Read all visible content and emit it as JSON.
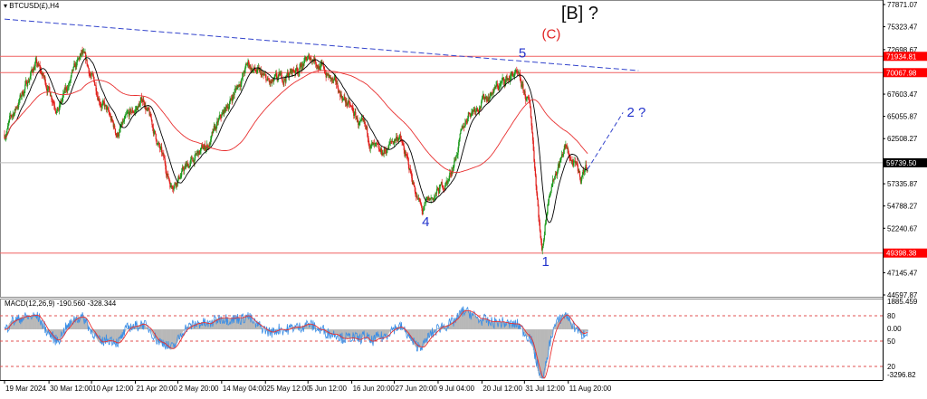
{
  "window": {
    "symbol_title": "BTCUSD(£),H4"
  },
  "colors": {
    "bull": "#1f9a1f",
    "bear": "#e0201c",
    "level_line": "#f06060",
    "trend_line": "#3344cc",
    "wave_label": "#2233cc",
    "c_label": "#e02020",
    "ma_short": "#000000",
    "ma_long": "#e83030",
    "current_price_bg": "#000000",
    "level_bg": "#ff0000"
  },
  "chart_data": {
    "type": "candlestick",
    "timeframe": "H4",
    "price_axis": {
      "min": 44597.87,
      "max": 77871.07,
      "ticks": [
        "77871.07",
        "75323.47",
        "72698.67",
        "67603.47",
        "65055.87",
        "62508.27",
        "57335.87",
        "54788.27",
        "52240.67",
        "47145.47",
        "44597.87"
      ]
    },
    "time_ticks": [
      {
        "label": "19 Mar 2024",
        "date": "2024-03-19T00:00"
      },
      {
        "label": "30 Mar 12:00",
        "date": "2024-03-30T12:00"
      },
      {
        "label": "10 Apr 12:00",
        "date": "2024-04-10T12:00"
      },
      {
        "label": "21 Apr 20:00",
        "date": "2024-04-21T20:00"
      },
      {
        "label": "2 May 20:00",
        "date": "2024-05-02T20:00"
      },
      {
        "label": "14 May 04:00",
        "date": "2024-05-14T04:00"
      },
      {
        "label": "25 May 12:00",
        "date": "2024-05-25T12:00"
      },
      {
        "label": "5 Jun 12:00",
        "date": "2024-06-05T12:00"
      },
      {
        "label": "16 Jun 20:00",
        "date": "2024-06-16T20:00"
      },
      {
        "label": "27 Jun 20:00",
        "date": "2024-06-27T20:00"
      },
      {
        "label": "9 Jul 04:00",
        "date": "2024-07-09T04:00"
      },
      {
        "label": "20 Jul 12:00",
        "date": "2024-07-20T12:00"
      },
      {
        "label": "31 Jul 12:00",
        "date": "2024-07-31T12:00"
      },
      {
        "label": "11 Aug 20:00",
        "date": "2024-08-11T20:00"
      }
    ],
    "price_path": [
      [
        "2024-03-19",
        63000
      ],
      [
        "2024-03-27",
        71200
      ],
      [
        "2024-04-02",
        66000
      ],
      [
        "2024-04-08",
        72000
      ],
      [
        "2024-04-17",
        63000
      ],
      [
        "2024-04-24",
        67000
      ],
      [
        "2024-05-01",
        57300
      ],
      [
        "2024-05-11",
        62000
      ],
      [
        "2024-05-21",
        71000
      ],
      [
        "2024-05-27",
        68500
      ],
      [
        "2024-06-07",
        71900
      ],
      [
        "2024-06-15",
        67000
      ],
      [
        "2024-06-24",
        60300
      ],
      [
        "2024-06-29",
        63000
      ],
      [
        "2024-07-05",
        54100
      ],
      [
        "2024-07-12",
        58000
      ],
      [
        "2024-07-17",
        65500
      ],
      [
        "2024-07-22",
        67500
      ],
      [
        "2024-07-29",
        70000
      ],
      [
        "2024-08-02",
        66000
      ],
      [
        "2024-08-05",
        49500
      ],
      [
        "2024-08-07",
        57000
      ],
      [
        "2024-08-11",
        61500
      ],
      [
        "2024-08-15",
        58000
      ],
      [
        "2024-08-16T20:00",
        59700
      ]
    ],
    "horizontal_levels": [
      {
        "price": 71934.81,
        "label": "71934.81"
      },
      {
        "price": 70067.98,
        "label": "70067.98"
      },
      {
        "price": 49398.38,
        "label": "49398.38"
      }
    ],
    "current_price": {
      "price": 59739.5,
      "label": "59739.50"
    },
    "trend_line": {
      "start": [
        "2024-03-19",
        76200
      ],
      "end": [
        "2024-08-30",
        70300
      ],
      "style": "dashed"
    },
    "projection_line": {
      "start": [
        "2024-08-16T20:00",
        59000
      ],
      "end": [
        "2024-08-26",
        65500
      ],
      "style": "dashed"
    },
    "moving_averages": [
      {
        "period": 20,
        "color": "black"
      },
      {
        "period": 120,
        "color": "red"
      }
    ],
    "annotations": [
      {
        "text": "[B] ?",
        "date": "2024-08-10",
        "price": 76200,
        "color": "black"
      },
      {
        "text": "(C)",
        "date": "2024-08-05",
        "price": 74000,
        "color": "red"
      },
      {
        "text": "5",
        "date": "2024-07-30",
        "price": 71800,
        "color": "blue"
      },
      {
        "text": "4",
        "date": "2024-07-05",
        "price": 52500,
        "color": "blue"
      },
      {
        "text": "1",
        "date": "2024-08-05",
        "price": 47900,
        "color": "blue"
      },
      {
        "text": "2 ?",
        "date": "2024-08-27",
        "price": 65000,
        "color": "blue"
      }
    ],
    "macd": {
      "title": "MACD(12,26,9) -190.560 -328.344",
      "axis_max": "1885.459",
      "axis_zero": "0.00",
      "axis_min": "-3296.82",
      "levels": [
        "80",
        "50",
        "20"
      ]
    }
  }
}
